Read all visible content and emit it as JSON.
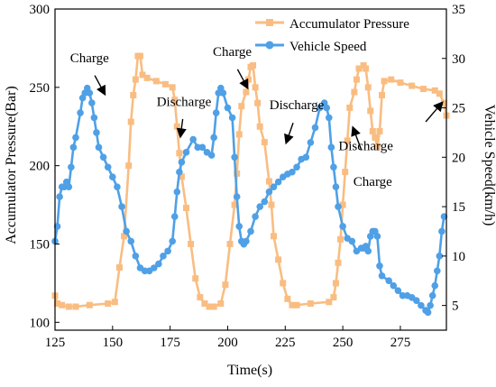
{
  "chart_data": {
    "type": "line",
    "xlabel": "Time(s)",
    "ylabel_left": "Accumulator Pressure(Bar)",
    "ylabel_right": "Vehicle Speed(km/h)",
    "xlim": [
      125,
      295
    ],
    "ylim_left": [
      95,
      300
    ],
    "ylim_right": [
      2.5,
      35
    ],
    "x_ticks": [
      125,
      150,
      175,
      200,
      225,
      250,
      275
    ],
    "y_left_ticks": [
      100,
      150,
      200,
      250,
      300
    ],
    "y_right_ticks": [
      5,
      10,
      15,
      20,
      25,
      30,
      35
    ],
    "grid": false,
    "legend_position": "top-right",
    "series": [
      {
        "name": "Accumulator Pressure",
        "axis": "left",
        "color": "#f9bd82",
        "marker": "square",
        "points": [
          [
            125,
            117
          ],
          [
            126,
            112
          ],
          [
            128,
            111
          ],
          [
            131,
            110
          ],
          [
            134,
            110
          ],
          [
            140,
            111
          ],
          [
            148,
            112
          ],
          [
            151,
            113
          ],
          [
            153,
            135
          ],
          [
            155,
            155
          ],
          [
            157,
            200
          ],
          [
            158,
            228
          ],
          [
            159,
            245
          ],
          [
            160,
            255
          ],
          [
            161,
            270
          ],
          [
            162,
            270
          ],
          [
            163,
            258
          ],
          [
            165,
            256
          ],
          [
            169,
            254
          ],
          [
            173,
            252
          ],
          [
            176,
            250
          ],
          [
            177,
            242
          ],
          [
            178,
            225
          ],
          [
            179,
            208
          ],
          [
            180,
            193
          ],
          [
            182,
            173
          ],
          [
            184,
            150
          ],
          [
            186,
            128
          ],
          [
            188,
            116
          ],
          [
            190,
            112
          ],
          [
            192,
            110
          ],
          [
            194,
            110
          ],
          [
            197,
            112
          ],
          [
            199,
            124
          ],
          [
            201,
            150
          ],
          [
            203,
            175
          ],
          [
            204,
            195
          ],
          [
            205,
            220
          ],
          [
            206,
            238
          ],
          [
            208,
            247
          ],
          [
            209,
            255
          ],
          [
            210,
            263
          ],
          [
            211,
            264
          ],
          [
            212,
            250
          ],
          [
            213,
            240
          ],
          [
            214,
            225
          ],
          [
            216,
            215
          ],
          [
            218,
            190
          ],
          [
            219,
            175
          ],
          [
            220,
            155
          ],
          [
            222,
            140
          ],
          [
            224,
            125
          ],
          [
            226,
            115
          ],
          [
            228,
            111
          ],
          [
            230,
            111
          ],
          [
            236,
            112
          ],
          [
            244,
            113
          ],
          [
            246,
            116
          ],
          [
            247,
            125
          ],
          [
            248,
            138
          ],
          [
            249,
            153
          ],
          [
            250,
            175
          ],
          [
            251,
            196
          ],
          [
            252,
            216
          ],
          [
            253,
            237
          ],
          [
            255,
            247
          ],
          [
            256,
            255
          ],
          [
            257,
            262
          ],
          [
            259,
            264
          ],
          [
            260,
            262
          ],
          [
            261,
            250
          ],
          [
            262,
            235
          ],
          [
            263,
            222
          ],
          [
            264,
            218
          ],
          [
            265,
            212
          ],
          [
            266,
            222
          ],
          [
            267,
            245
          ],
          [
            268,
            254
          ],
          [
            271,
            255
          ],
          [
            275,
            253
          ],
          [
            280,
            251
          ],
          [
            285,
            249
          ],
          [
            290,
            248
          ],
          [
            292,
            246
          ],
          [
            294,
            240
          ],
          [
            295,
            232
          ]
        ]
      },
      {
        "name": "Vehicle Speed",
        "axis": "right",
        "color": "#4fa0e6",
        "marker": "circle",
        "points": [
          [
            125,
            11.5
          ],
          [
            126,
            13
          ],
          [
            127,
            16
          ],
          [
            128,
            17
          ],
          [
            129,
            17
          ],
          [
            130,
            17.5
          ],
          [
            131,
            17
          ],
          [
            132,
            19
          ],
          [
            133,
            21
          ],
          [
            134,
            22
          ],
          [
            136,
            24.5
          ],
          [
            137,
            26
          ],
          [
            138,
            26.5
          ],
          [
            139,
            27
          ],
          [
            140,
            26.5
          ],
          [
            141,
            25.5
          ],
          [
            142,
            24
          ],
          [
            143,
            22.5
          ],
          [
            144,
            21
          ],
          [
            146,
            20
          ],
          [
            148,
            19
          ],
          [
            150,
            18
          ],
          [
            152,
            17
          ],
          [
            154,
            15
          ],
          [
            156,
            12.5
          ],
          [
            158,
            11.5
          ],
          [
            160,
            10
          ],
          [
            162,
            8.8
          ],
          [
            164,
            8.5
          ],
          [
            166,
            8.5
          ],
          [
            168,
            8.8
          ],
          [
            170,
            9.2
          ],
          [
            172,
            10
          ],
          [
            174,
            10.5
          ],
          [
            176,
            11.5
          ],
          [
            177,
            14
          ],
          [
            178,
            16.5
          ],
          [
            179,
            18.5
          ],
          [
            180,
            19.5
          ],
          [
            182,
            20.5
          ],
          [
            185,
            21.8
          ],
          [
            187,
            21
          ],
          [
            189,
            21
          ],
          [
            191,
            20.5
          ],
          [
            193,
            20.2
          ],
          [
            194,
            22
          ],
          [
            195,
            24.5
          ],
          [
            196,
            26.5
          ],
          [
            197,
            27
          ],
          [
            198,
            26.5
          ],
          [
            200,
            25
          ],
          [
            202,
            24
          ],
          [
            203,
            20
          ],
          [
            204,
            16
          ],
          [
            205,
            13
          ],
          [
            206,
            11.5
          ],
          [
            207,
            11.2
          ],
          [
            208,
            11.5
          ],
          [
            210,
            12.5
          ],
          [
            212,
            14
          ],
          [
            214,
            15
          ],
          [
            216,
            15.5
          ],
          [
            218,
            16.5
          ],
          [
            220,
            17
          ],
          [
            222,
            17.5
          ],
          [
            224,
            18
          ],
          [
            226,
            18.3
          ],
          [
            228,
            18.5
          ],
          [
            230,
            19
          ],
          [
            232,
            19.8
          ],
          [
            234,
            20
          ],
          [
            236,
            21.5
          ],
          [
            238,
            23
          ],
          [
            240,
            25
          ],
          [
            242,
            25.5
          ],
          [
            243,
            25
          ],
          [
            244,
            24
          ],
          [
            245,
            21
          ],
          [
            246,
            19
          ],
          [
            247,
            17
          ],
          [
            248,
            15
          ],
          [
            250,
            13
          ],
          [
            252,
            11.8
          ],
          [
            254,
            11.5
          ],
          [
            256,
            10.5
          ],
          [
            258,
            10.8
          ],
          [
            259,
            10.8
          ],
          [
            260,
            11
          ],
          [
            261,
            10.5
          ],
          [
            262,
            12
          ],
          [
            263,
            12.5
          ],
          [
            264,
            12.5
          ],
          [
            265,
            12
          ],
          [
            266,
            9
          ],
          [
            267,
            8
          ],
          [
            270,
            7.5
          ],
          [
            272,
            7
          ],
          [
            274,
            6.5
          ],
          [
            276,
            6
          ],
          [
            278,
            6
          ],
          [
            280,
            5.8
          ],
          [
            282,
            5.5
          ],
          [
            284,
            5
          ],
          [
            286,
            4.5
          ],
          [
            287,
            4.3
          ],
          [
            288,
            5
          ],
          [
            289,
            6
          ],
          [
            290,
            7
          ],
          [
            291,
            8.5
          ],
          [
            292,
            10
          ],
          [
            293,
            12.5
          ],
          [
            294,
            14
          ]
        ]
      }
    ],
    "annotations": [
      {
        "text": "Charge",
        "x": 140,
        "y_left": 266,
        "arrow_to": [
          146.5,
          246
        ]
      },
      {
        "text": "Discharge",
        "x": 181,
        "y_left": 238,
        "arrow_to": [
          179.5,
          219
        ]
      },
      {
        "text": "Charge",
        "x": 202,
        "y_left": 270,
        "arrow_to": [
          208.5,
          250
        ]
      },
      {
        "text": "Discharge",
        "x": 230,
        "y_left": 236,
        "arrow_to": [
          225.5,
          215
        ]
      },
      {
        "text": "Discharge",
        "x": 260,
        "y_left": 210,
        "arrow_to": [
          254.5,
          224
        ]
      },
      {
        "text": "Charge",
        "x": 263,
        "y_left": 187,
        "arrow_to": null
      },
      {
        "text": null,
        "x": null,
        "y_left": null,
        "arrow_from": [
          286,
          228
        ],
        "arrow_to": [
          293,
          240
        ]
      }
    ]
  }
}
